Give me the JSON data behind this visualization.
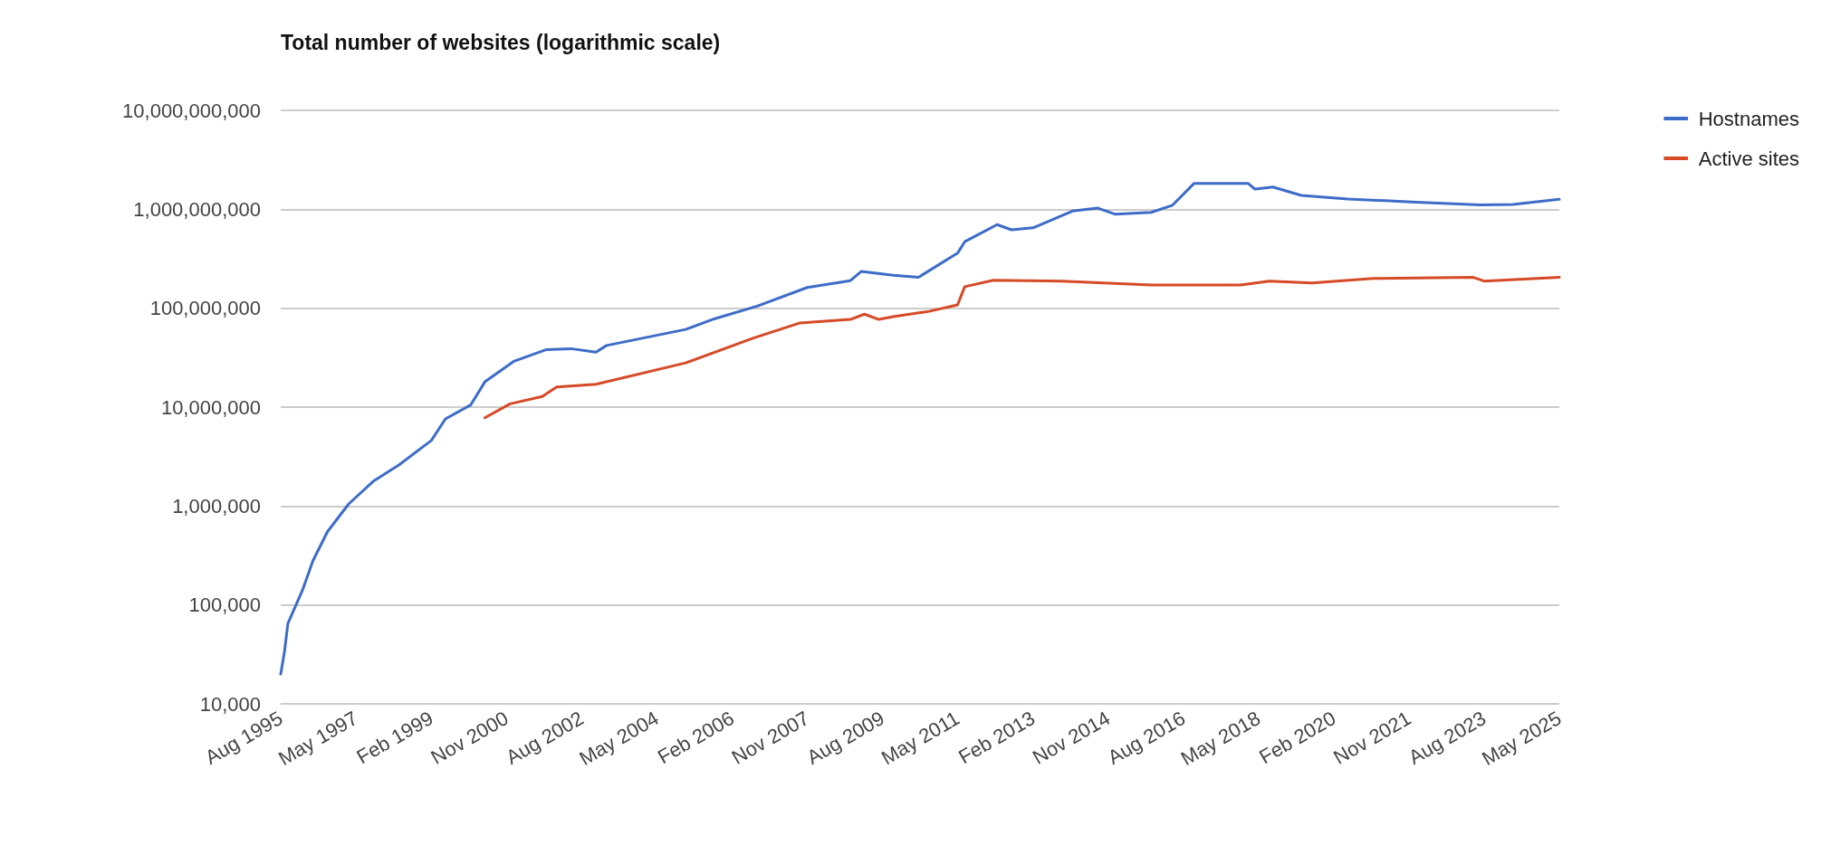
{
  "chart_data": {
    "type": "line",
    "title": "Total number of websites (logarithmic scale)",
    "log": "y",
    "grid": "y",
    "legend": "top right",
    "marker": "none",
    "line_style": "solid",
    "xlim": [
      "1995-08",
      "2025-05"
    ],
    "xticks": [
      {
        "value": "1995-08",
        "label": "Aug 1995"
      },
      {
        "value": "1997-05",
        "label": "May 1997"
      },
      {
        "value": "1999-02",
        "label": "Feb 1999"
      },
      {
        "value": "2000-11",
        "label": "Nov 2000"
      },
      {
        "value": "2002-08",
        "label": "Aug 2002"
      },
      {
        "value": "2004-05",
        "label": "May 2004"
      },
      {
        "value": "2006-02",
        "label": "Feb 2006"
      },
      {
        "value": "2007-11",
        "label": "Nov 2007"
      },
      {
        "value": "2009-08",
        "label": "Aug 2009"
      },
      {
        "value": "2011-05",
        "label": "May 2011"
      },
      {
        "value": "2013-02",
        "label": "Feb 2013"
      },
      {
        "value": "2014-11",
        "label": "Nov 2014"
      },
      {
        "value": "2016-08",
        "label": "Aug 2016"
      },
      {
        "value": "2018-05",
        "label": "May 2018"
      },
      {
        "value": "2020-02",
        "label": "Feb 2020"
      },
      {
        "value": "2021-11",
        "label": "Nov 2021"
      },
      {
        "value": "2023-08",
        "label": "Aug 2023"
      },
      {
        "value": "2025-05",
        "label": "May 2025"
      }
    ],
    "ylim": [
      10000,
      10000000000
    ],
    "yticks": [
      {
        "value": 10000,
        "label": "10,000"
      },
      {
        "value": 100000,
        "label": "100,000"
      },
      {
        "value": 1000000,
        "label": "1,000,000"
      },
      {
        "value": 10000000,
        "label": "10,000,000"
      },
      {
        "value": 100000000,
        "label": "100,000,000"
      },
      {
        "value": 1000000000,
        "label": "1,000,000,000"
      },
      {
        "value": 10000000000,
        "label": "10,000,000,000"
      }
    ],
    "series": [
      {
        "name": "Hostnames",
        "color": "#3d6cc8",
        "x": [
          "1995-08",
          "1995-09",
          "1995-10",
          "1996-02",
          "1996-05",
          "1996-09",
          "1997-03",
          "1997-10",
          "1998-05",
          "1999-02",
          "1999-06",
          "2000-01",
          "2000-05",
          "2001-01",
          "2001-10",
          "2002-05",
          "2002-12",
          "2003-03",
          "2005-01",
          "2005-09",
          "2006-09",
          "2007-11",
          "2008-11",
          "2009-02",
          "2009-11",
          "2010-06",
          "2011-05",
          "2011-07",
          "2012-04",
          "2012-08",
          "2013-02",
          "2014-01",
          "2014-08",
          "2015-01",
          "2015-11",
          "2016-05",
          "2016-11",
          "2018-02",
          "2018-04",
          "2018-09",
          "2019-05",
          "2020-06",
          "2022-01",
          "2023-07",
          "2024-04",
          "2025-05"
        ],
        "values": [
          20000,
          33000,
          65000,
          140000,
          280000,
          550000,
          1050000,
          1800000,
          2600000,
          4600000,
          7600000,
          10500000,
          18000000,
          29000000,
          38000000,
          39000000,
          36000000,
          42000000,
          61000000,
          78000000,
          105000000,
          162000000,
          190000000,
          235000000,
          215000000,
          205000000,
          360000000,
          470000000,
          700000000,
          620000000,
          650000000,
          960000000,
          1030000000,
          890000000,
          930000000,
          1100000000,
          1830000000,
          1830000000,
          1600000000,
          1680000000,
          1380000000,
          1270000000,
          1180000000,
          1110000000,
          1120000000,
          1260000000
        ]
      },
      {
        "name": "Active sites",
        "color": "#d64a27",
        "x": [
          "2000-05",
          "2000-12",
          "2001-09",
          "2002-01",
          "2002-12",
          "2005-01",
          "2006-08",
          "2007-09",
          "2008-11",
          "2009-03",
          "2009-07",
          "2009-11",
          "2010-09",
          "2011-05",
          "2011-07",
          "2012-03",
          "2013-10",
          "2015-11",
          "2017-12",
          "2018-08",
          "2019-08",
          "2021-01",
          "2023-05",
          "2023-08",
          "2025-05"
        ],
        "values": [
          7800000,
          10800000,
          12800000,
          16000000,
          17000000,
          28000000,
          50000000,
          71000000,
          77000000,
          87000000,
          77000000,
          82000000,
          93000000,
          108000000,
          165000000,
          192000000,
          188000000,
          172000000,
          172000000,
          188000000,
          180000000,
          200000000,
          205000000,
          188000000,
          205000000
        ]
      }
    ]
  }
}
